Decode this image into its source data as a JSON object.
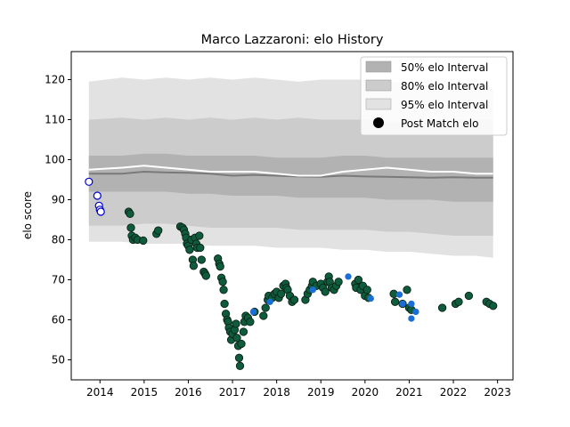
{
  "chart_data": {
    "type": "scatter",
    "title": "Marco Lazzaroni: elo History",
    "xlabel": "",
    "ylabel": "elo score",
    "xlim": [
      2013.35,
      2023.35
    ],
    "ylim": [
      45,
      127
    ],
    "xticks": [
      "2014",
      "2015",
      "2016",
      "2017",
      "2018",
      "2019",
      "2020",
      "2021",
      "2022",
      "2023"
    ],
    "yticks": [
      "50",
      "60",
      "70",
      "80",
      "90",
      "100",
      "110",
      "120"
    ],
    "grid": false,
    "legend_position": "top-right",
    "legend": [
      {
        "label": "50% elo Interval",
        "kind": "band",
        "color": "#b2b2b2"
      },
      {
        "label": "80% elo Interval",
        "kind": "band",
        "color": "#cccccc"
      },
      {
        "label": "95% elo Interval",
        "kind": "band",
        "color": "#e2e2e2"
      },
      {
        "label": "Post Match elo",
        "kind": "marker",
        "color": "#000000"
      }
    ],
    "bands": {
      "x": [
        2013.75,
        2014.5,
        2015.0,
        2015.5,
        2016.0,
        2016.5,
        2017.0,
        2017.5,
        2018.0,
        2018.5,
        2019.0,
        2019.5,
        2020.0,
        2020.5,
        2021.0,
        2021.5,
        2022.0,
        2022.5,
        2022.9
      ],
      "median": [
        96.5,
        96.5,
        97.0,
        96.8,
        96.7,
        96.5,
        96.0,
        96.2,
        96.0,
        95.8,
        95.7,
        96.0,
        95.8,
        95.7,
        95.6,
        95.5,
        95.6,
        95.5,
        95.5
      ],
      "p50_low": [
        92.0,
        92.0,
        92.0,
        92.0,
        91.5,
        91.5,
        91.0,
        91.0,
        91.0,
        90.5,
        90.5,
        90.5,
        90.5,
        90.0,
        90.0,
        90.0,
        89.5,
        89.5,
        89.5
      ],
      "p50_high": [
        101.0,
        101.0,
        101.5,
        101.5,
        101.0,
        101.0,
        101.0,
        101.0,
        100.5,
        100.5,
        100.5,
        101.0,
        101.0,
        100.5,
        100.5,
        100.5,
        100.5,
        100.5,
        100.5
      ],
      "p80_low": [
        83.5,
        83.5,
        84.0,
        84.0,
        83.5,
        83.0,
        83.0,
        83.0,
        83.0,
        82.5,
        82.5,
        82.5,
        82.5,
        82.0,
        82.0,
        81.5,
        81.0,
        81.0,
        81.0
      ],
      "p80_high": [
        110.0,
        110.5,
        110.0,
        110.5,
        110.0,
        110.5,
        110.0,
        110.5,
        110.0,
        110.5,
        110.0,
        110.0,
        110.0,
        109.5,
        109.5,
        110.0,
        110.0,
        110.0,
        110.0
      ],
      "p95_low": [
        79.5,
        79.5,
        79.0,
        79.0,
        79.0,
        78.5,
        78.5,
        78.5,
        78.0,
        78.0,
        78.0,
        77.5,
        77.5,
        77.0,
        77.0,
        76.5,
        76.0,
        76.0,
        75.5
      ],
      "p95_high": [
        119.5,
        120.5,
        120.0,
        120.5,
        120.0,
        120.5,
        120.0,
        120.5,
        120.0,
        119.5,
        120.0,
        120.0,
        120.0,
        119.5,
        119.0,
        119.0,
        118.5,
        118.0,
        118.0
      ],
      "white_line": [
        97.5,
        98.0,
        98.5,
        98.0,
        97.5,
        97.0,
        97.0,
        97.0,
        96.5,
        96.0,
        96.0,
        97.0,
        97.5,
        98.0,
        97.5,
        97.0,
        97.0,
        96.5,
        96.5
      ]
    },
    "series": [
      {
        "marker_fill": "#ffffff",
        "marker_edge": "#0000cc",
        "points": [
          [
            2013.75,
            94.5
          ],
          [
            2013.94,
            91.0
          ],
          [
            2013.98,
            88.5
          ],
          [
            2014.0,
            87.5
          ],
          [
            2014.02,
            87.0
          ]
        ]
      },
      {
        "marker_fill": "#0f5c3c",
        "marker_edge": "#0a2218",
        "points": [
          [
            2014.65,
            87.0
          ],
          [
            2014.68,
            86.5
          ],
          [
            2014.7,
            83.0
          ],
          [
            2014.72,
            81.0
          ],
          [
            2014.75,
            80.0
          ],
          [
            2014.8,
            80.5
          ],
          [
            2014.85,
            80.0
          ],
          [
            2014.98,
            79.8
          ],
          [
            2015.28,
            81.5
          ],
          [
            2015.32,
            82.3
          ],
          [
            2015.82,
            83.3
          ],
          [
            2015.87,
            83.0
          ],
          [
            2015.9,
            82.5
          ],
          [
            2015.93,
            81.5
          ],
          [
            2015.95,
            80.5
          ],
          [
            2015.97,
            79.0
          ],
          [
            2016.0,
            78.5
          ],
          [
            2016.03,
            77.5
          ],
          [
            2016.07,
            80.0
          ],
          [
            2016.1,
            75.0
          ],
          [
            2016.12,
            73.5
          ],
          [
            2016.15,
            80.5
          ],
          [
            2016.18,
            79.0
          ],
          [
            2016.2,
            78.0
          ],
          [
            2016.25,
            81.0
          ],
          [
            2016.27,
            78.0
          ],
          [
            2016.3,
            75.0
          ],
          [
            2016.35,
            72.0
          ],
          [
            2016.38,
            71.5
          ],
          [
            2016.4,
            71.0
          ],
          [
            2016.67,
            75.3
          ],
          [
            2016.7,
            74.0
          ],
          [
            2016.72,
            73.3
          ],
          [
            2016.75,
            70.5
          ],
          [
            2016.78,
            69.5
          ],
          [
            2016.8,
            67.5
          ],
          [
            2016.82,
            64.0
          ],
          [
            2016.85,
            61.5
          ],
          [
            2016.88,
            60.0
          ],
          [
            2016.9,
            59.5
          ],
          [
            2016.92,
            58.0
          ],
          [
            2016.95,
            57.0
          ],
          [
            2016.97,
            55.0
          ],
          [
            2017.0,
            56.5
          ],
          [
            2017.05,
            57.5
          ],
          [
            2017.08,
            59.0
          ],
          [
            2017.1,
            55.5
          ],
          [
            2017.13,
            53.5
          ],
          [
            2017.15,
            50.5
          ],
          [
            2017.17,
            48.5
          ],
          [
            2017.2,
            54.0
          ],
          [
            2017.25,
            57.0
          ],
          [
            2017.27,
            59.5
          ],
          [
            2017.3,
            61.0
          ],
          [
            2017.35,
            60.5
          ],
          [
            2017.4,
            59.5
          ],
          [
            2017.5,
            62.0
          ],
          [
            2017.7,
            61.0
          ],
          [
            2017.75,
            63.0
          ],
          [
            2017.8,
            65.0
          ],
          [
            2017.82,
            66.0
          ],
          [
            2017.9,
            65.5
          ],
          [
            2017.95,
            66.5
          ],
          [
            2018.0,
            67.0
          ],
          [
            2018.05,
            65.5
          ],
          [
            2018.1,
            66.5
          ],
          [
            2018.15,
            68.5
          ],
          [
            2018.2,
            69.0
          ],
          [
            2018.22,
            68.0
          ],
          [
            2018.25,
            67.5
          ],
          [
            2018.3,
            66.0
          ],
          [
            2018.35,
            64.5
          ],
          [
            2018.4,
            65.0
          ],
          [
            2018.65,
            65.0
          ],
          [
            2018.7,
            66.5
          ],
          [
            2018.75,
            67.5
          ],
          [
            2018.8,
            68.5
          ],
          [
            2018.82,
            69.5
          ],
          [
            2018.9,
            68.5
          ],
          [
            2019.0,
            69.0
          ],
          [
            2019.05,
            68.0
          ],
          [
            2019.1,
            67.0
          ],
          [
            2019.15,
            69.5
          ],
          [
            2019.18,
            70.8
          ],
          [
            2019.2,
            69.5
          ],
          [
            2019.25,
            68.0
          ],
          [
            2019.3,
            67.5
          ],
          [
            2019.35,
            68.5
          ],
          [
            2019.4,
            69.5
          ],
          [
            2019.78,
            69.0
          ],
          [
            2019.8,
            68.0
          ],
          [
            2019.85,
            70.0
          ],
          [
            2019.9,
            67.5
          ],
          [
            2019.95,
            68.5
          ],
          [
            2020.0,
            66.0
          ],
          [
            2020.05,
            67.5
          ],
          [
            2020.08,
            65.5
          ],
          [
            2020.65,
            66.5
          ],
          [
            2020.68,
            64.5
          ],
          [
            2020.85,
            64.0
          ],
          [
            2020.95,
            67.5
          ],
          [
            2021.0,
            63.0
          ],
          [
            2021.05,
            62.5
          ],
          [
            2021.75,
            63.0
          ],
          [
            2022.05,
            64.0
          ],
          [
            2022.12,
            64.5
          ],
          [
            2022.35,
            66.0
          ],
          [
            2022.75,
            64.5
          ],
          [
            2022.82,
            64.0
          ],
          [
            2022.9,
            63.5
          ]
        ]
      },
      {
        "marker_fill": "#1a6fd6",
        "marker_edge": "#1a6fd6",
        "points": [
          [
            2017.47,
            62.0
          ],
          [
            2017.85,
            64.5
          ],
          [
            2018.82,
            67.5
          ],
          [
            2019.62,
            70.8
          ],
          [
            2020.13,
            65.3
          ],
          [
            2020.78,
            66.3
          ],
          [
            2020.85,
            64.0
          ],
          [
            2021.05,
            64.0
          ],
          [
            2021.05,
            60.3
          ],
          [
            2021.15,
            62.0
          ]
        ]
      }
    ]
  }
}
